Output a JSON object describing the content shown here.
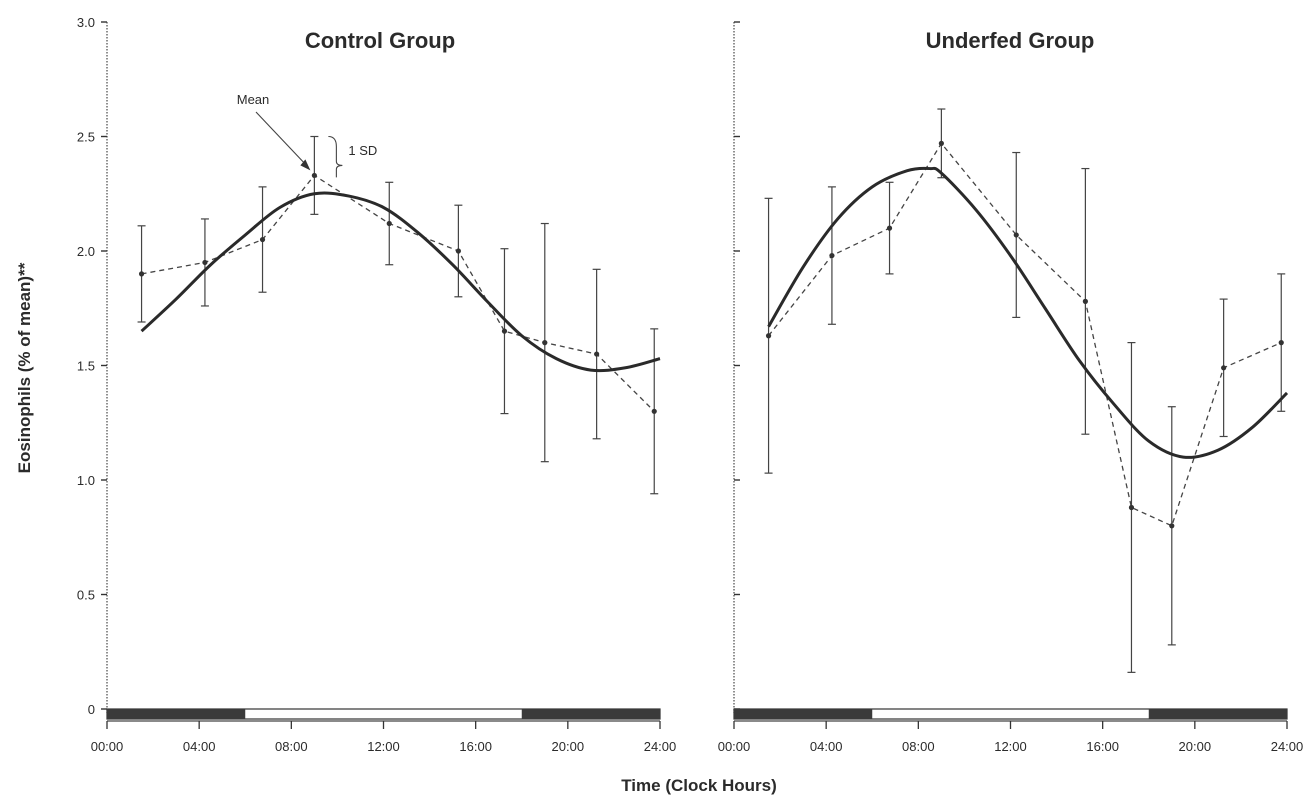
{
  "figure": {
    "ylabel": "Eosinophils (% of mean)**",
    "xlabel": "Time (Clock Hours)"
  },
  "chart_data": [
    {
      "type": "line",
      "title": "Control Group",
      "xlabel": "Time (Clock Hours)",
      "ylabel": "Eosinophils (% of mean)**",
      "ylim": [
        0,
        3.0
      ],
      "xlim": [
        "00:00",
        "24:00"
      ],
      "x_tick_labels": [
        "00:00",
        "04:00",
        "08:00",
        "12:00",
        "16:00",
        "20:00",
        "24:00"
      ],
      "y_tick_labels": [
        "0",
        "0.5",
        "1.0",
        "1.5",
        "2.0",
        "2.5",
        "3.0"
      ],
      "grid": false,
      "light_dark_bar": {
        "dark_until": "06:00",
        "dark_from": "18:00"
      },
      "annotations": [
        {
          "text": "Mean"
        },
        {
          "text": "1 SD"
        }
      ],
      "series": [
        {
          "style": "dashed-markers-errorbars",
          "x": [
            "01:30",
            "04:15",
            "06:45",
            "09:00",
            "12:15",
            "15:15",
            "17:15",
            "19:00",
            "21:15",
            "23:45"
          ],
          "y": [
            1.9,
            1.95,
            2.05,
            2.33,
            2.12,
            2.0,
            1.65,
            1.6,
            1.55,
            1.3
          ],
          "sd": [
            0.21,
            0.19,
            0.23,
            0.17,
            0.18,
            0.2,
            0.36,
            0.52,
            0.37,
            0.36
          ]
        },
        {
          "style": "solid-smooth-fit",
          "x": [
            "01:30",
            "03:00",
            "04:30",
            "06:00",
            "07:30",
            "09:00",
            "10:30",
            "12:00",
            "13:30",
            "15:00",
            "16:30",
            "18:00",
            "19:30",
            "21:00",
            "22:30",
            "24:00"
          ],
          "y": [
            1.65,
            1.79,
            1.94,
            2.07,
            2.19,
            2.25,
            2.24,
            2.19,
            2.08,
            1.94,
            1.78,
            1.63,
            1.53,
            1.48,
            1.49,
            1.53
          ]
        }
      ]
    },
    {
      "type": "line",
      "title": "Underfed Group",
      "xlabel": "Time (Clock Hours)",
      "ylim": [
        0,
        3.0
      ],
      "xlim": [
        "00:00",
        "24:00"
      ],
      "x_tick_labels": [
        "00:00",
        "04:00",
        "08:00",
        "12:00",
        "16:00",
        "20:00",
        "24:00"
      ],
      "grid": false,
      "light_dark_bar": {
        "dark_until": "06:00",
        "dark_from": "18:00"
      },
      "series": [
        {
          "style": "dashed-markers-errorbars",
          "x": [
            "01:30",
            "04:15",
            "06:45",
            "09:00",
            "12:15",
            "15:15",
            "17:15",
            "19:00",
            "21:15",
            "23:45"
          ],
          "y": [
            1.63,
            1.98,
            2.1,
            2.47,
            2.07,
            1.78,
            0.88,
            0.8,
            1.49,
            1.6
          ],
          "sd": [
            0.6,
            0.3,
            0.2,
            0.15,
            0.36,
            0.58,
            0.72,
            0.52,
            0.3,
            0.3
          ]
        },
        {
          "style": "solid-smooth-fit",
          "x": [
            "01:30",
            "03:00",
            "04:30",
            "06:00",
            "07:30",
            "08:30",
            "09:00",
            "10:30",
            "12:00",
            "13:30",
            "15:00",
            "16:30",
            "18:00",
            "19:30",
            "21:00",
            "22:30",
            "24:00"
          ],
          "y": [
            1.67,
            1.93,
            2.14,
            2.28,
            2.35,
            2.36,
            2.34,
            2.18,
            1.98,
            1.75,
            1.52,
            1.33,
            1.17,
            1.1,
            1.13,
            1.23,
            1.38
          ]
        }
      ]
    }
  ]
}
